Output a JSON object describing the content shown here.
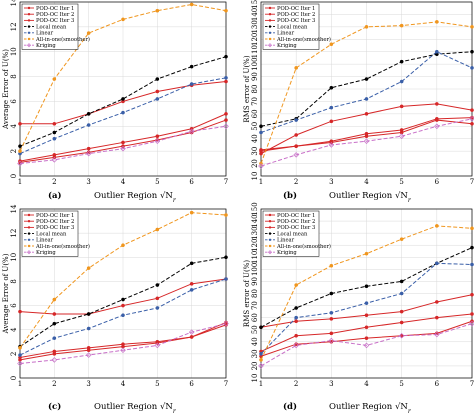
{
  "figure": {
    "legend": [
      "POD-OC Iter 1",
      "POD-OC Iter 2",
      "POD-OC Iter 3",
      "Local mean",
      "Linear",
      "All-in-one(smoother)",
      "Kriging"
    ],
    "styles": [
      {
        "color": "#d62728",
        "dash": "",
        "marker": "circle"
      },
      {
        "color": "#d62728",
        "dash": "",
        "marker": "circle"
      },
      {
        "color": "#d62728",
        "dash": "",
        "marker": "circle"
      },
      {
        "color": "#000000",
        "dash": "4,2",
        "marker": "circle"
      },
      {
        "color": "#3a5fa8",
        "dash": "4,2",
        "marker": "circle"
      },
      {
        "color": "#f0961e",
        "dash": "4,2",
        "marker": "circle"
      },
      {
        "color": "#c86fc8",
        "dash": "4,2",
        "marker": "diamond"
      }
    ]
  },
  "chart_data": [
    {
      "type": "line",
      "caption_letter": "(a)",
      "xlabel": "Outlier Region √N_r",
      "ylabel": "Average Error of U(%)",
      "x": [
        1,
        2,
        3,
        4,
        5,
        6,
        7
      ],
      "xticks": [
        "1",
        "2",
        "3",
        "4",
        "5",
        "6",
        "7"
      ],
      "ylim": [
        0,
        14
      ],
      "yticks": [
        "0",
        "2",
        "4",
        "6",
        "8",
        "10",
        "12",
        "14"
      ],
      "series": [
        {
          "name": "POD-OC Iter 1",
          "values": [
            4.2,
            4.2,
            5.0,
            6.0,
            6.8,
            7.3,
            7.6
          ]
        },
        {
          "name": "POD-OC Iter 2",
          "values": [
            1.2,
            1.7,
            2.2,
            2.7,
            3.2,
            3.8,
            5.0
          ]
        },
        {
          "name": "POD-OC Iter 3",
          "values": [
            1.1,
            1.5,
            1.9,
            2.4,
            2.9,
            3.5,
            4.5
          ]
        },
        {
          "name": "Local mean",
          "values": [
            2.4,
            3.5,
            5.0,
            6.2,
            7.8,
            8.8,
            9.6
          ]
        },
        {
          "name": "Linear",
          "values": [
            1.8,
            3.0,
            4.1,
            5.1,
            6.2,
            7.4,
            7.9
          ]
        },
        {
          "name": "All-in-one(smoother)",
          "values": [
            2.0,
            7.8,
            11.5,
            12.6,
            13.3,
            13.8,
            13.3
          ]
        },
        {
          "name": "Kriging",
          "values": [
            1.0,
            1.3,
            1.8,
            2.2,
            2.8,
            3.6,
            4.0
          ]
        }
      ]
    },
    {
      "type": "line",
      "caption_letter": "(b)",
      "xlabel": "Outlier Region √N_r",
      "ylabel": "RMS error of U(%)",
      "x": [
        1,
        2,
        3,
        4,
        5,
        6,
        7
      ],
      "xticks": [
        "1",
        "2",
        "3",
        "4",
        "5",
        "6",
        "7"
      ],
      "ylim": [
        10,
        150
      ],
      "yticks": [
        "10",
        "20",
        "30",
        "40",
        "50",
        "60",
        "70",
        "80",
        "90",
        "100",
        "110",
        "120",
        "130",
        "140",
        "150"
      ],
      "series": [
        {
          "name": "POD-OC Iter 1",
          "values": [
            28,
            43,
            54,
            60,
            66,
            68,
            63
          ]
        },
        {
          "name": "POD-OC Iter 2",
          "values": [
            30,
            34,
            38,
            44,
            47,
            56,
            57
          ]
        },
        {
          "name": "POD-OC Iter 3",
          "values": [
            31,
            34,
            37,
            42,
            45,
            55,
            52
          ]
        },
        {
          "name": "Local mean",
          "values": [
            50,
            56,
            81,
            88,
            102,
            108,
            110
          ]
        },
        {
          "name": "Linear",
          "values": [
            45,
            55,
            65,
            72,
            86,
            110,
            97
          ]
        },
        {
          "name": "All-in-one(smoother)",
          "values": [
            20,
            97,
            116,
            130,
            131,
            134,
            130
          ]
        },
        {
          "name": "Kriging",
          "values": [
            18,
            27,
            35,
            38,
            42,
            50,
            56
          ]
        }
      ]
    },
    {
      "type": "line",
      "caption_letter": "(c)",
      "xlabel": "Outlier Region √N_r",
      "ylabel": "Average Error of U(%)",
      "x": [
        1,
        2,
        3,
        4,
        5,
        6,
        7
      ],
      "xticks": [
        "1",
        "2",
        "3",
        "4",
        "5",
        "6",
        "7"
      ],
      "ylim": [
        0,
        14
      ],
      "yticks": [
        "0",
        "2",
        "4",
        "6",
        "8",
        "10",
        "12",
        "14"
      ],
      "series": [
        {
          "name": "POD-OC Iter 1",
          "values": [
            5.5,
            5.3,
            5.3,
            6.0,
            6.6,
            7.8,
            8.2
          ]
        },
        {
          "name": "POD-OC Iter 2",
          "values": [
            1.7,
            2.2,
            2.5,
            2.8,
            3.0,
            3.4,
            4.6
          ]
        },
        {
          "name": "POD-OC Iter 3",
          "values": [
            1.5,
            2.0,
            2.3,
            2.6,
            2.9,
            3.4,
            4.4
          ]
        },
        {
          "name": "Local mean",
          "values": [
            2.6,
            4.5,
            5.3,
            6.5,
            7.7,
            9.5,
            10.0
          ]
        },
        {
          "name": "Linear",
          "values": [
            1.9,
            3.3,
            4.1,
            5.2,
            5.8,
            7.3,
            8.2
          ]
        },
        {
          "name": "All-in-one(smoother)",
          "values": [
            2.5,
            6.5,
            9.1,
            11.0,
            12.3,
            13.7,
            13.5
          ]
        },
        {
          "name": "Kriging",
          "values": [
            1.2,
            1.5,
            1.9,
            2.3,
            2.7,
            3.8,
            4.5
          ]
        }
      ]
    },
    {
      "type": "line",
      "caption_letter": "(d)",
      "xlabel": "Outlier Region √N_r",
      "ylabel": "RMS error of U(%)",
      "x": [
        1,
        2,
        3,
        4,
        5,
        6,
        7
      ],
      "xticks": [
        "1",
        "2",
        "3",
        "4",
        "5",
        "6",
        "7"
      ],
      "ylim": [
        10,
        150
      ],
      "yticks": [
        "10",
        "20",
        "30",
        "40",
        "50",
        "60",
        "70",
        "80",
        "90",
        "100",
        "110",
        "120",
        "130",
        "140",
        "150"
      ],
      "series": [
        {
          "name": "POD-OC Iter 1",
          "values": [
            52,
            57,
            59,
            62,
            65,
            73,
            79
          ]
        },
        {
          "name": "POD-OC Iter 2",
          "values": [
            32,
            45,
            47,
            52,
            56,
            60,
            63
          ]
        },
        {
          "name": "POD-OC Iter 3",
          "values": [
            28,
            38,
            40,
            43,
            45,
            47,
            57
          ]
        },
        {
          "name": "Local mean",
          "values": [
            52,
            68,
            80,
            86,
            90,
            105,
            118
          ]
        },
        {
          "name": "Linear",
          "values": [
            30,
            60,
            64,
            72,
            80,
            105,
            104
          ]
        },
        {
          "name": "All-in-one(smoother)",
          "values": [
            25,
            87,
            103,
            113,
            125,
            136,
            134
          ]
        },
        {
          "name": "Kriging",
          "values": [
            20,
            37,
            41,
            37,
            45,
            46,
            55
          ]
        }
      ]
    }
  ]
}
